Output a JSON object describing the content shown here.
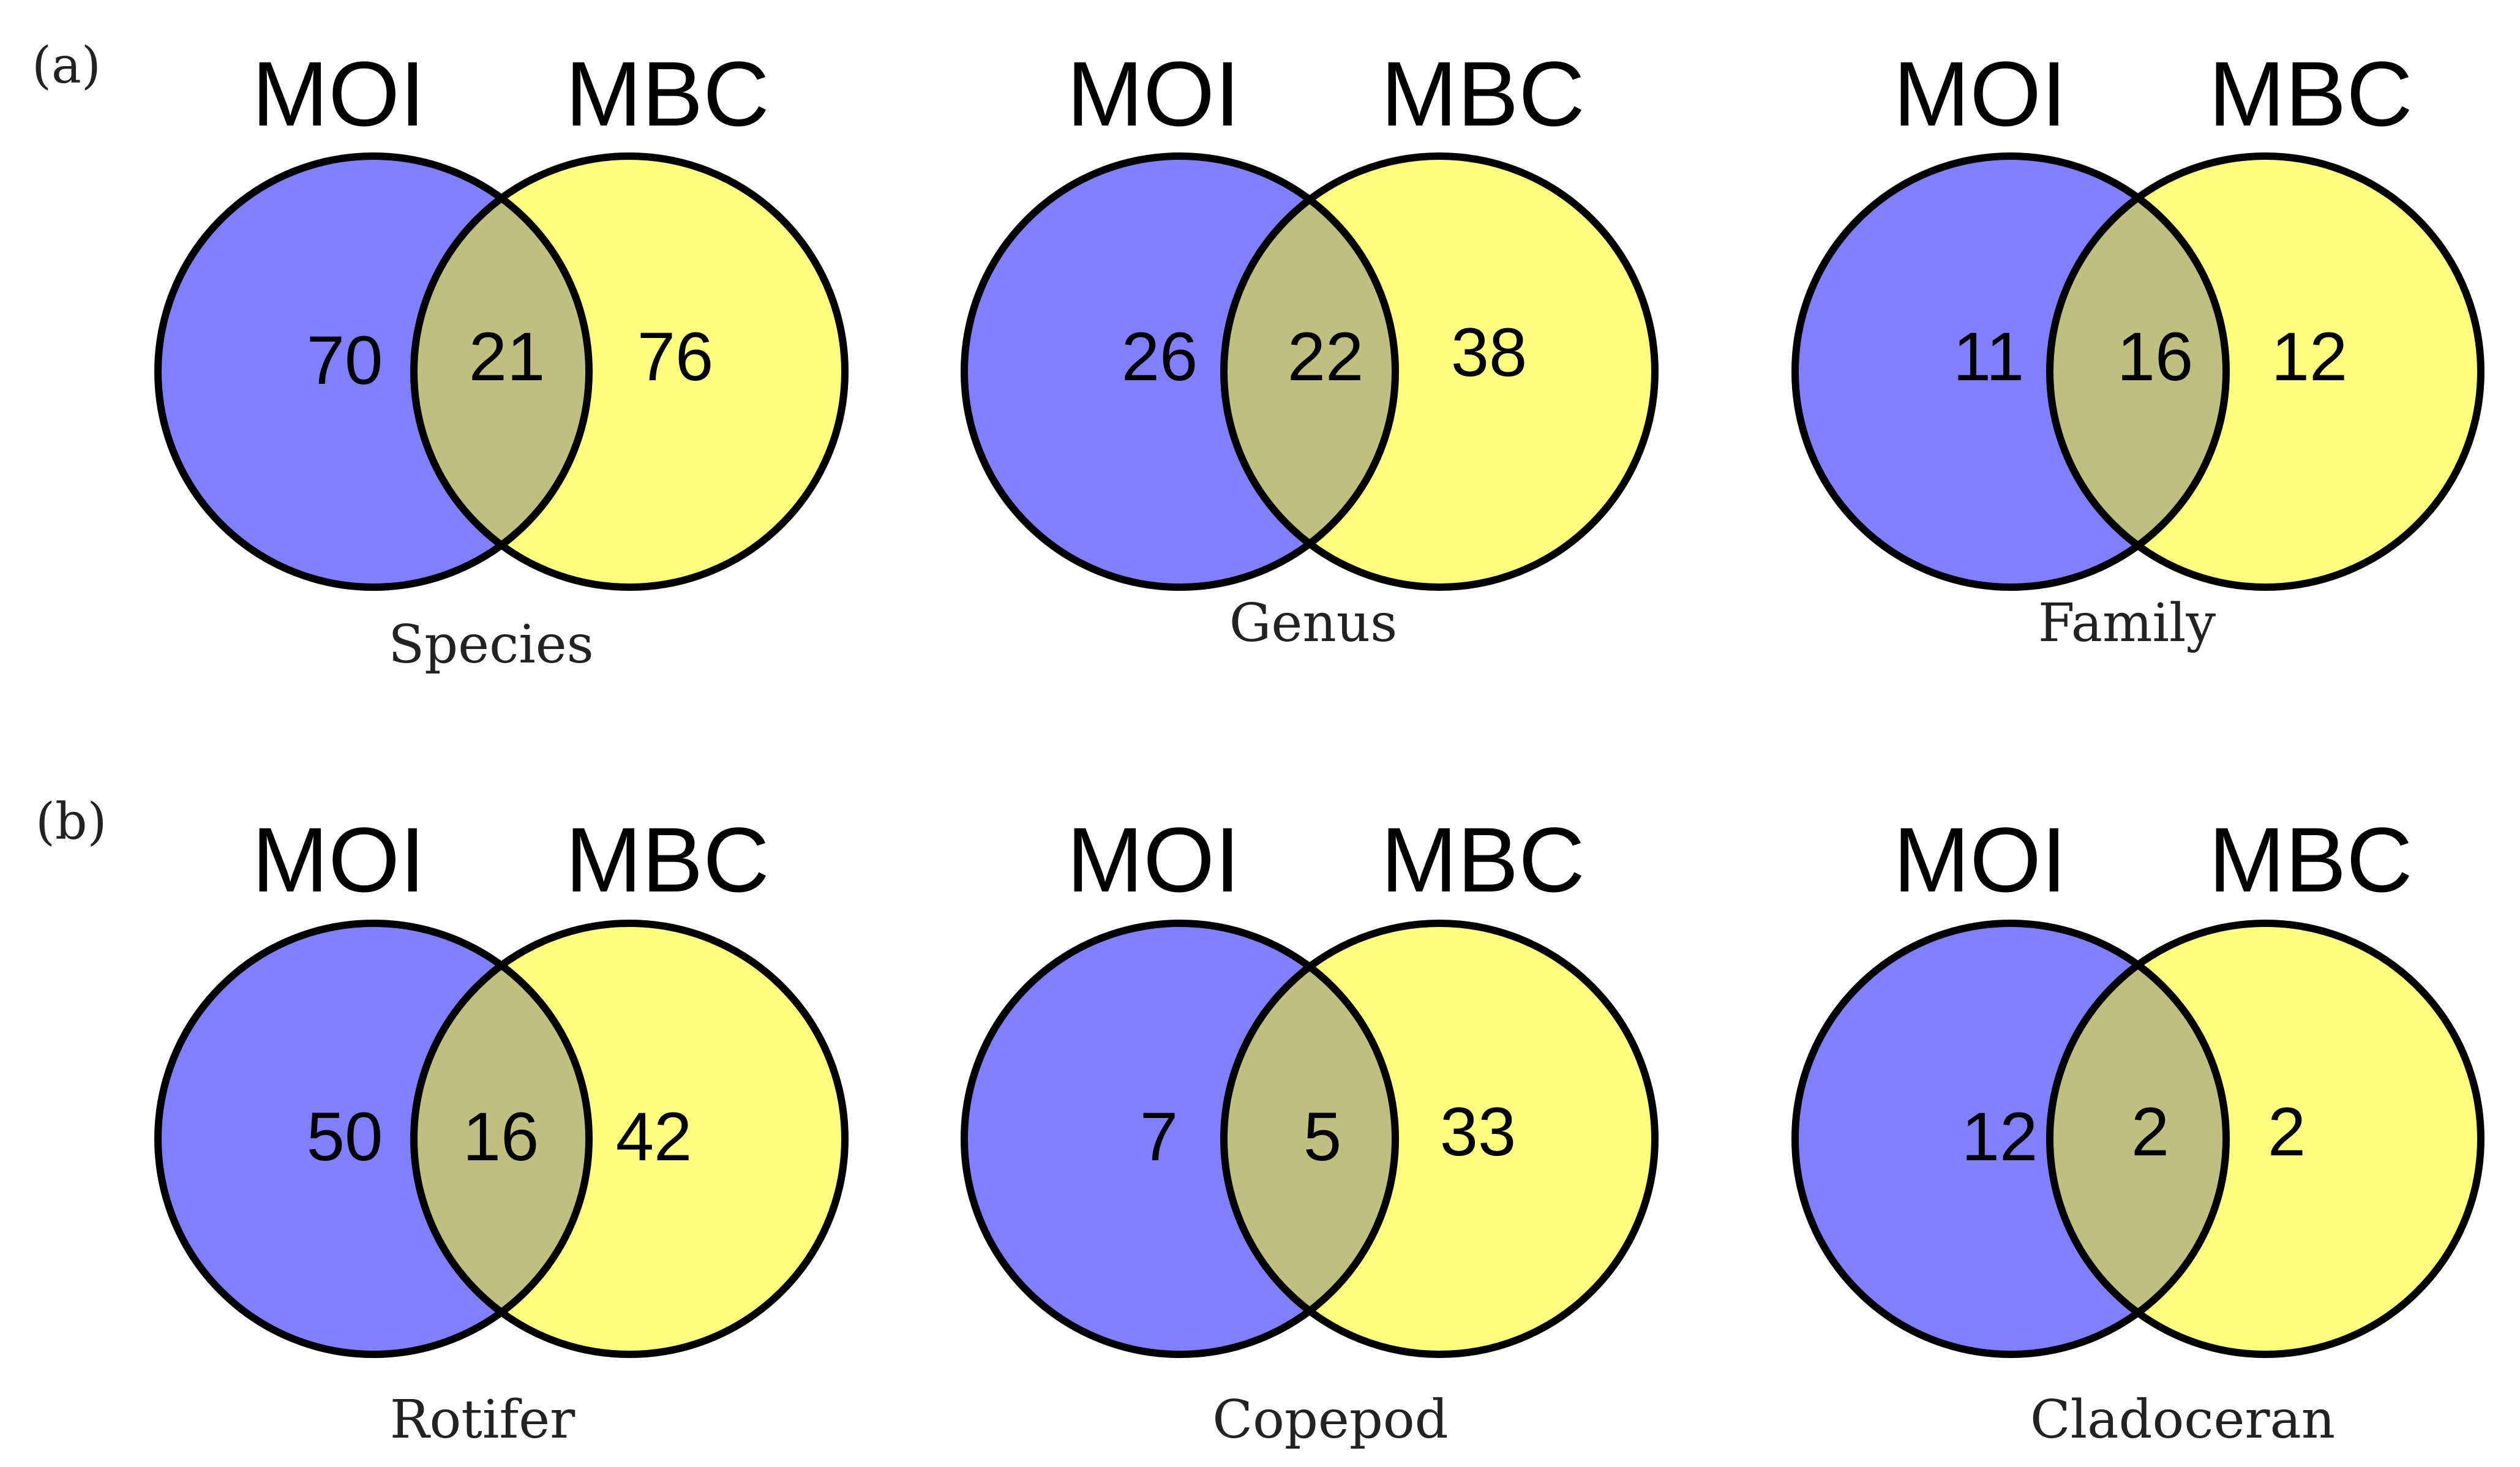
{
  "panels": [
    {
      "label": "(a)",
      "diagrams": [
        {
          "left_label": "MOI",
          "right_label": "MBC",
          "left_only": "70",
          "shared": "21",
          "right_only": "76",
          "caption": "Species"
        },
        {
          "left_label": "MOI",
          "right_label": "MBC",
          "left_only": "26",
          "shared": "22",
          "right_only": "38",
          "caption": "Genus"
        },
        {
          "left_label": "MOI",
          "right_label": "MBC",
          "left_only": "11",
          "shared": "16",
          "right_only": "12",
          "caption": "Family"
        }
      ]
    },
    {
      "label": "(b)",
      "diagrams": [
        {
          "left_label": "MOI",
          "right_label": "MBC",
          "left_only": "50",
          "shared": "16",
          "right_only": "42",
          "caption": "Rotifer"
        },
        {
          "left_label": "MOI",
          "right_label": "MBC",
          "left_only": "7",
          "shared": "5",
          "right_only": "33",
          "caption": "Copepod"
        },
        {
          "left_label": "MOI",
          "right_label": "MBC",
          "left_only": "12",
          "shared": "2",
          "right_only": "2",
          "caption": "Cladoceran"
        }
      ]
    }
  ],
  "colors": {
    "left_set": "#8080ff",
    "right_set": "#ffff80",
    "overlap": "#bfbf80",
    "outline": "#000000"
  }
}
